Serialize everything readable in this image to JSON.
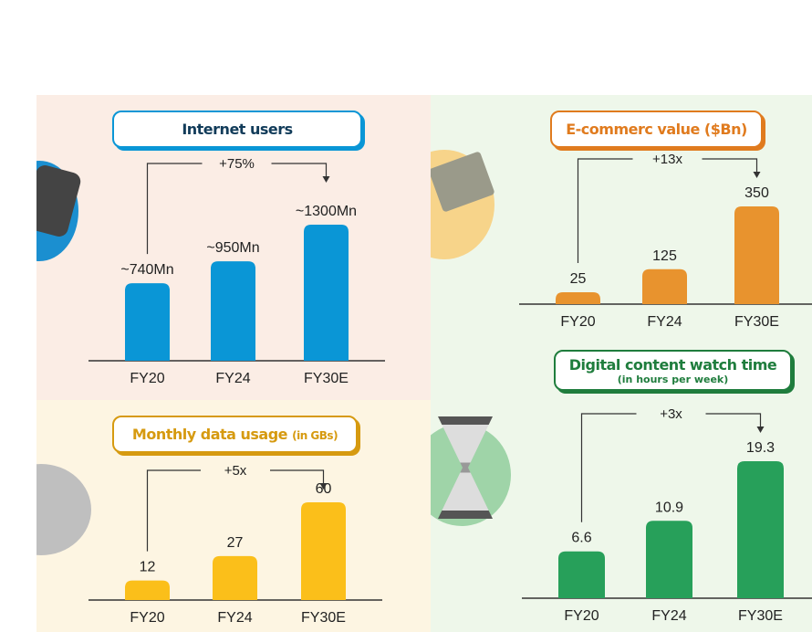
{
  "colors": {
    "blue": "#0a96d6",
    "orange": "#e8932e",
    "yellow": "#fbbf1a",
    "green": "#27a05a",
    "navy": "#123c5a",
    "title_orange": "#e07b1e",
    "title_yellow": "#d69a10",
    "title_green": "#1f7d3d"
  },
  "chart_data": [
    {
      "type": "bar",
      "title": "Internet users",
      "categories": [
        "FY20",
        "FY24",
        "FY30E"
      ],
      "values": [
        740,
        950,
        1300
      ],
      "labels": [
        "~740Mn",
        "~950Mn",
        "~1300Mn"
      ],
      "annotation": "+75%",
      "color": "#0a96d6"
    },
    {
      "type": "bar",
      "title": "E-commerc value ($Bn)",
      "categories": [
        "FY20",
        "FY24",
        "FY30E"
      ],
      "values": [
        25,
        125,
        350
      ],
      "labels": [
        "25",
        "125",
        "350"
      ],
      "annotation": "+13x",
      "color": "#e8932e"
    },
    {
      "type": "bar",
      "title": "Monthly data usage",
      "title_suffix": "(in GBs)",
      "categories": [
        "FY20",
        "FY24",
        "FY30E"
      ],
      "values": [
        12,
        27,
        60
      ],
      "labels": [
        "12",
        "27",
        "60"
      ],
      "annotation": "+5x",
      "color": "#fbbf1a"
    },
    {
      "type": "bar",
      "title": "Digital content watch time",
      "subtitle": "(in hours per week)",
      "categories": [
        "FY20",
        "FY24",
        "FY30E"
      ],
      "values": [
        6.6,
        10.9,
        19.3
      ],
      "labels": [
        "6.6",
        "10.9",
        "19.3"
      ],
      "annotation": "+3x",
      "color": "#27a05a"
    }
  ]
}
